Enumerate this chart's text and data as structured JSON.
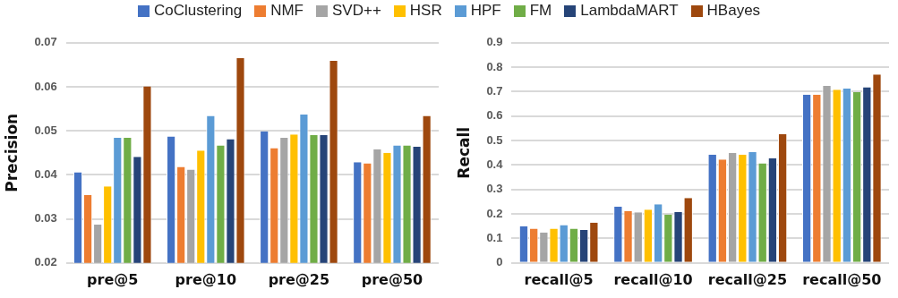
{
  "chart_data": [
    {
      "type": "bar",
      "ylabel": "Precision",
      "categories": [
        "pre@5",
        "pre@10",
        "pre@25",
        "pre@50"
      ],
      "ylim": [
        0.02,
        0.07
      ],
      "yticks": [
        0.02,
        0.03,
        0.04,
        0.05,
        0.06,
        0.07
      ],
      "grid": "y",
      "legend": "top",
      "series": [
        {
          "name": "CoClustering",
          "color": "#4472c4",
          "values": [
            0.0406,
            0.0487,
            0.0499,
            0.0429
          ]
        },
        {
          "name": "NMF",
          "color": "#ed7d31",
          "values": [
            0.0354,
            0.0418,
            0.0461,
            0.0426
          ]
        },
        {
          "name": "SVD++",
          "color": "#a5a5a5",
          "values": [
            0.0287,
            0.0412,
            0.0484,
            0.0458
          ]
        },
        {
          "name": "HSR",
          "color": "#ffc000",
          "values": [
            0.0374,
            0.0455,
            0.0492,
            0.045
          ]
        },
        {
          "name": "HPF",
          "color": "#5b9bd5",
          "values": [
            0.0484,
            0.0534,
            0.0537,
            0.0467
          ]
        },
        {
          "name": "FM",
          "color": "#70ad47",
          "values": [
            0.0484,
            0.0467,
            0.049,
            0.0467
          ]
        },
        {
          "name": "LambdaMART",
          "color": "#264478",
          "values": [
            0.0441,
            0.0481,
            0.049,
            0.0464
          ]
        },
        {
          "name": "HBayes",
          "color": "#9e480e",
          "values": [
            0.0601,
            0.0665,
            0.0659,
            0.0534
          ]
        }
      ]
    },
    {
      "type": "bar",
      "ylabel": "Recall",
      "categories": [
        "recall@5",
        "recall@10",
        "recall@25",
        "recall@50"
      ],
      "ylim": [
        0,
        0.9
      ],
      "yticks": [
        0,
        0.1,
        0.2,
        0.3,
        0.4,
        0.5,
        0.6,
        0.7,
        0.8,
        0.9
      ],
      "grid": "y",
      "series": [
        {
          "name": "CoClustering",
          "color": "#4472c4",
          "values": [
            0.15,
            0.23,
            0.443,
            0.688
          ]
        },
        {
          "name": "NMF",
          "color": "#ed7d31",
          "values": [
            0.14,
            0.212,
            0.423,
            0.688
          ]
        },
        {
          "name": "SVD++",
          "color": "#a5a5a5",
          "values": [
            0.125,
            0.207,
            0.449,
            0.724
          ]
        },
        {
          "name": "HSR",
          "color": "#ffc000",
          "values": [
            0.14,
            0.218,
            0.443,
            0.708
          ]
        },
        {
          "name": "HPF",
          "color": "#5b9bd5",
          "values": [
            0.155,
            0.24,
            0.454,
            0.713
          ]
        },
        {
          "name": "FM",
          "color": "#70ad47",
          "values": [
            0.14,
            0.198,
            0.407,
            0.698
          ]
        },
        {
          "name": "LambdaMART",
          "color": "#264478",
          "values": [
            0.135,
            0.208,
            0.428,
            0.718
          ]
        },
        {
          "name": "HBayes",
          "color": "#9e480e",
          "values": [
            0.165,
            0.265,
            0.527,
            0.77
          ]
        }
      ]
    }
  ]
}
